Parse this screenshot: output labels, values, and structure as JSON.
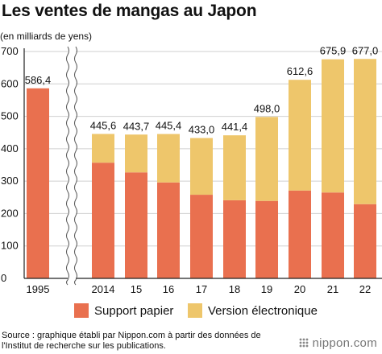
{
  "title": "Les ventes de mangas au Japon",
  "unit_label": "(en milliards de yens)",
  "legend": {
    "paper": "Support papier",
    "digital": "Version électronique"
  },
  "source": "Source : graphique établi par Nippon.com à partir des données de l'Institut de recherche sur les publications.",
  "logo": "nippon.com",
  "colors": {
    "paper": "#e9704f",
    "digital": "#eec66b",
    "grid": "#cfcfcf",
    "axis": "#222222"
  },
  "chart_data": {
    "type": "bar",
    "stacked": true,
    "categories": [
      "1995",
      "2014",
      "15",
      "16",
      "17",
      "18",
      "19",
      "20",
      "21",
      "22"
    ],
    "series": [
      {
        "name": "Support papier",
        "values": [
          586.4,
          357,
          327,
          296,
          258,
          241,
          239,
          271,
          265,
          229
        ]
      },
      {
        "name": "Version électronique",
        "values": [
          0,
          88.6,
          116.7,
          149.4,
          175,
          200.4,
          259,
          341.6,
          410.9,
          448
        ]
      }
    ],
    "totals": [
      "586,4",
      "445,6",
      "443,7",
      "445,4",
      "433,0",
      "441,4",
      "498,0",
      "612,6",
      "675,9",
      "677,0"
    ],
    "yticks": [
      0,
      100,
      200,
      300,
      400,
      500,
      600,
      700
    ],
    "ylim": [
      0,
      700
    ],
    "axis_break_after": "1995",
    "grid": true,
    "legend_position": "bottom"
  }
}
